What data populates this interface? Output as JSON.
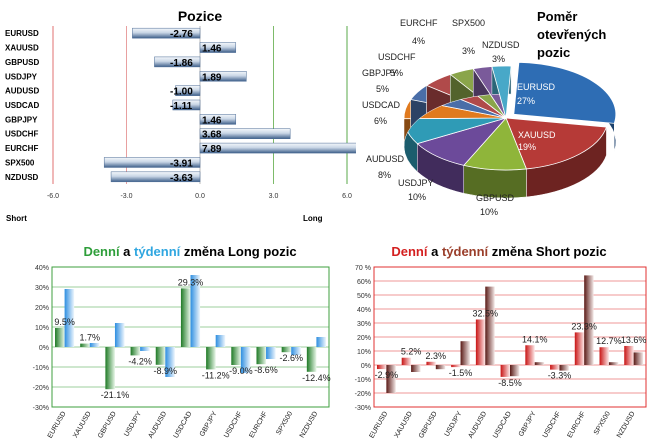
{
  "chart_data": [
    {
      "type": "bar",
      "orientation": "horizontal",
      "title": "Pozice",
      "categories": [
        "EURUSD",
        "XAUUSD",
        "GBPUSD",
        "USDJPY",
        "AUDUSD",
        "USDCAD",
        "GBPJPY",
        "USDCHF",
        "EURCHF",
        "SPX500",
        "NZDUSD"
      ],
      "values": [
        -2.76,
        1.46,
        -1.86,
        1.89,
        -1.0,
        -1.11,
        1.46,
        3.68,
        7.89,
        -3.91,
        -3.63
      ],
      "value_labels": [
        "-2.76",
        "1.46",
        "-1.86",
        "1.89",
        "-1.00",
        "-1.11",
        "1.46",
        "3.68",
        "7.89",
        "-3.91",
        "-3.63"
      ],
      "xlim": [
        -6,
        6
      ],
      "ticks": [
        "-6.0",
        "-3.0",
        "0.0",
        "3.0",
        "6.0"
      ],
      "tick_values": [
        -6,
        -3,
        0,
        3,
        6
      ],
      "left_label": "Short",
      "right_label": "Long",
      "colors": {
        "bar_dark": "#3e5f8a",
        "bar_light": "#f2f6fb",
        "short_line": "#e8a0a0",
        "long_line": "#7dbb6a",
        "axis": "#555555"
      }
    },
    {
      "type": "pie",
      "title": "Poměr otevřených pozic",
      "slices": [
        {
          "name": "EURUSD",
          "value": 27,
          "label": "27%",
          "color": "#2e6db4"
        },
        {
          "name": "XAUUSD",
          "value": 19,
          "label": "19%",
          "color": "#b63a37"
        },
        {
          "name": "GBPUSD",
          "value": 10,
          "label": "10%",
          "color": "#8fb53a"
        },
        {
          "name": "USDJPY",
          "value": 10,
          "label": "10%",
          "color": "#6c4a9a"
        },
        {
          "name": "AUDUSD",
          "value": 8,
          "label": "8%",
          "color": "#2f9bb6"
        },
        {
          "name": "USDCAD",
          "value": 6,
          "label": "6%",
          "color": "#e07a1e"
        },
        {
          "name": "GBPJPY",
          "value": 5,
          "label": "5%",
          "color": "#4a6ea8"
        },
        {
          "name": "USDCHF",
          "value": 5,
          "label": "5%",
          "color": "#b04a4a"
        },
        {
          "name": "EURCHF",
          "value": 4,
          "label": "4%",
          "color": "#8aa54a"
        },
        {
          "name": "SPX500",
          "value": 3,
          "label": "3%",
          "color": "#7a5a9a"
        },
        {
          "name": "NZDUSD",
          "value": 3,
          "label": "3%",
          "color": "#48a8c8"
        }
      ]
    },
    {
      "type": "bar",
      "title_parts": [
        {
          "text": "Denní",
          "color": "#2e9e3a"
        },
        {
          "text": " a ",
          "color": "#000000"
        },
        {
          "text": "týdenní",
          "color": "#2fa6e0"
        },
        {
          "text": " změna Long pozic",
          "color": "#000000"
        }
      ],
      "categories": [
        "EURUSD",
        "XAUUSD",
        "GBPUSD",
        "USDJPY",
        "AUDUSD",
        "USDCAD",
        "GBPJPY",
        "USDCHF",
        "EURCHF",
        "SPX500",
        "NZDUSD"
      ],
      "series": [
        {
          "name": "Denní",
          "values": [
            9.5,
            1.7,
            -21.1,
            -4.2,
            -8.9,
            29.3,
            -11.2,
            -9.0,
            -8.6,
            -2.6,
            -12.4
          ],
          "color": "#1f8a2a"
        },
        {
          "name": "týdenní",
          "values": [
            29,
            2,
            12,
            -2,
            -15,
            36,
            6,
            -13,
            -6,
            -4,
            5
          ],
          "color": "#3aa0e8"
        }
      ],
      "data_labels": [
        "9.5%",
        "1.7%",
        "-21.1%",
        "-4.2%",
        "-8.9%",
        "29.3%",
        "-11.2%",
        "-9.0%",
        "-8.6%",
        "-2.6%",
        "-12.4%"
      ],
      "ylim": [
        -30,
        40
      ],
      "yticks": [
        "40%",
        "30%",
        "20%",
        "10%",
        "0%",
        "-10%",
        "-20%",
        "-30%"
      ],
      "ytick_values": [
        40,
        30,
        20,
        10,
        0,
        -10,
        -20,
        -30
      ],
      "grid": true,
      "grid_color": "#3f9f3f"
    },
    {
      "type": "bar",
      "title_parts": [
        {
          "text": "Denní",
          "color": "#d42020"
        },
        {
          "text": " a ",
          "color": "#000000"
        },
        {
          "text": "týdenní",
          "color": "#9a3e2a"
        },
        {
          "text": " změna Short pozic",
          "color": "#000000"
        }
      ],
      "categories": [
        "EURUSD",
        "XAUUSD",
        "GBPUSD",
        "USDJPY",
        "AUDUSD",
        "USDCAD",
        "GBPJPY",
        "USDCHF",
        "EURCHF",
        "SPX500",
        "NZDUSD"
      ],
      "series": [
        {
          "name": "Denní",
          "values": [
            -2.9,
            5.2,
            2.3,
            -1.5,
            32.5,
            -8.5,
            14.1,
            -3.3,
            23.3,
            12.7,
            13.6
          ],
          "color": "#d01818"
        },
        {
          "name": "týdenní",
          "values": [
            -20,
            -5,
            -3,
            17,
            56,
            -8,
            2,
            -4,
            64,
            2,
            9
          ],
          "color": "#7a2a22"
        }
      ],
      "data_labels": [
        "-2.9%",
        "5.2%",
        "2.3%",
        "-1.5%",
        "32.5%",
        "-8.5%",
        "14.1%",
        "-3.3%",
        "23.3%",
        "12.7%",
        "13.6%"
      ],
      "ylim": [
        -30,
        70
      ],
      "yticks": [
        "70 %",
        "60%",
        "50%",
        "40%",
        "30%",
        "20%",
        "10%",
        "0%",
        "-10%",
        "-20%",
        "-30%"
      ],
      "ytick_values": [
        70,
        60,
        50,
        40,
        30,
        20,
        10,
        0,
        -10,
        -20,
        -30
      ],
      "grid": true,
      "grid_color": "#e03030"
    }
  ]
}
